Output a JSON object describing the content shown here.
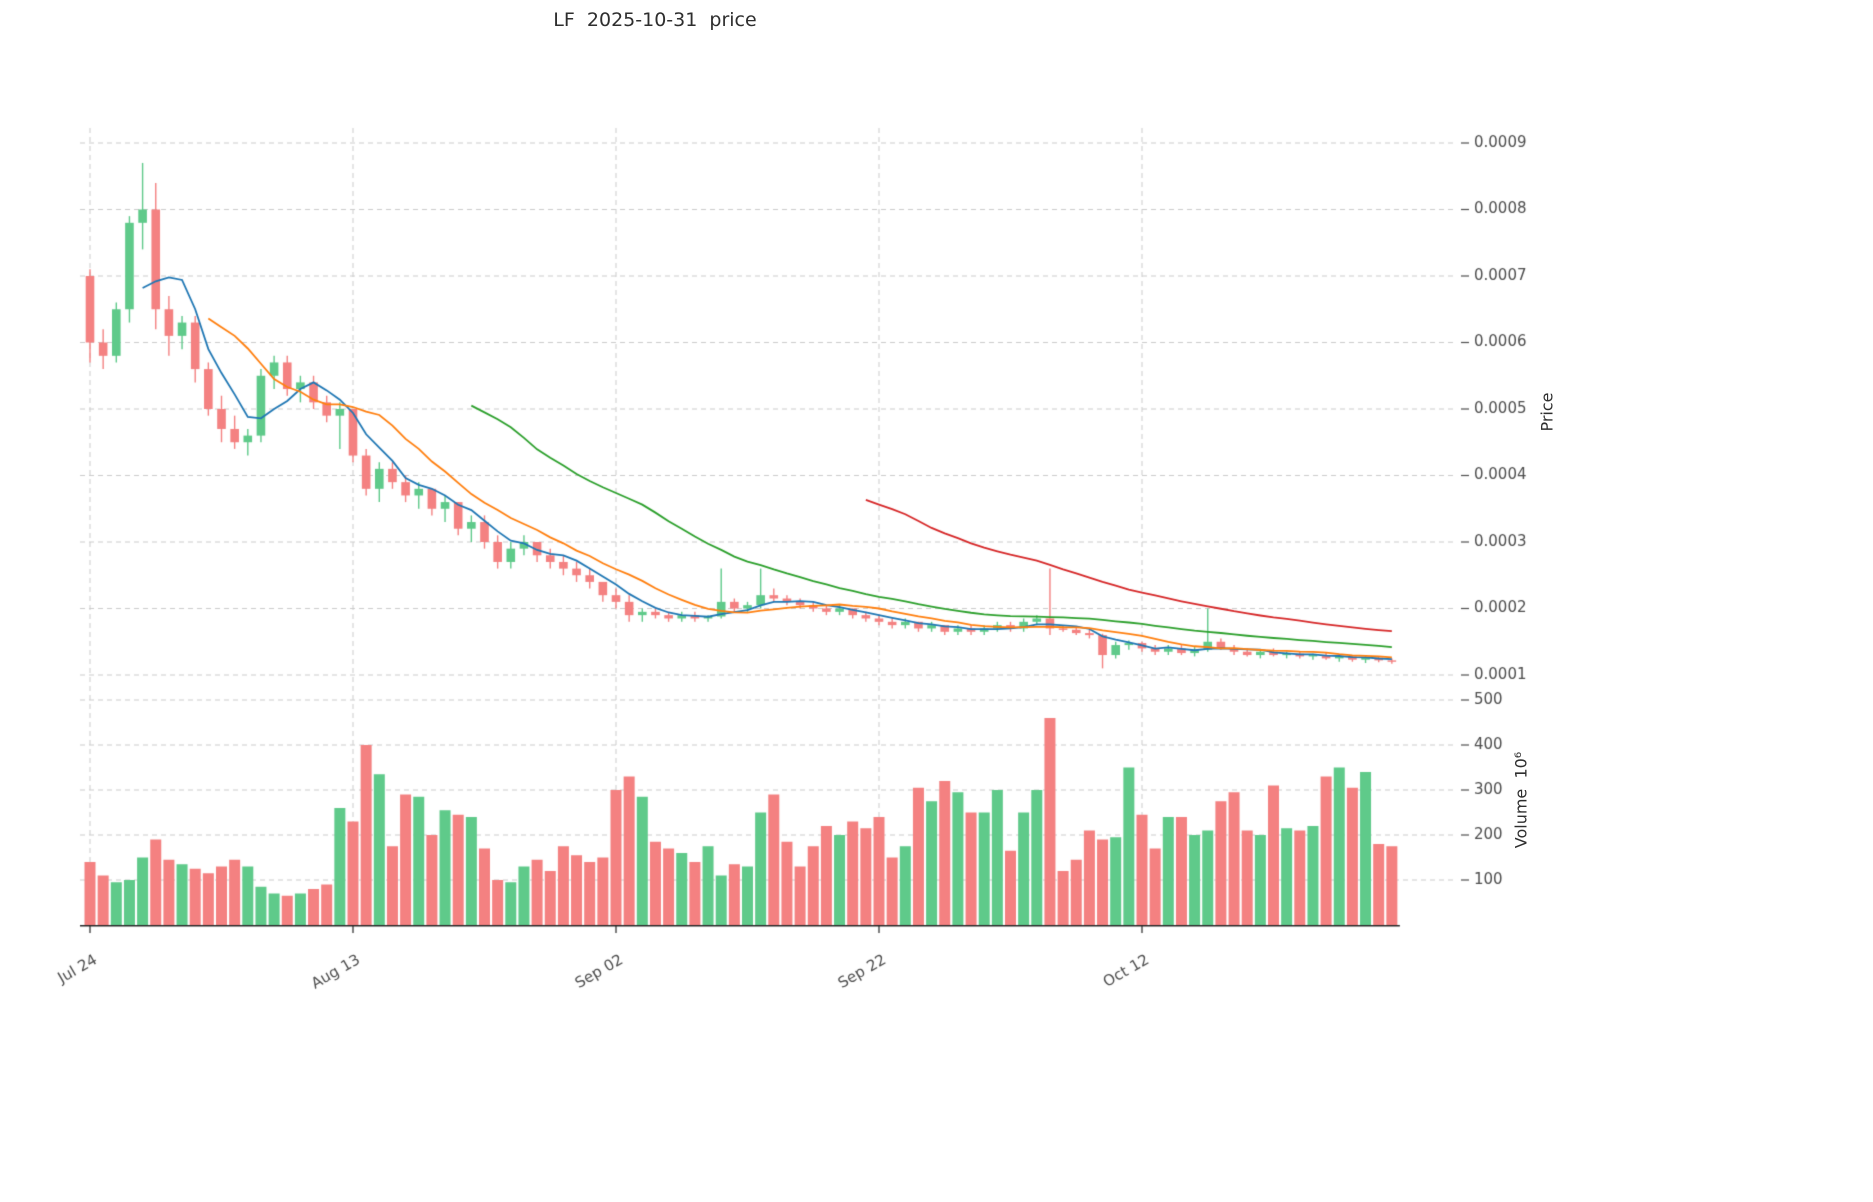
{
  "chart_data": {
    "type": "candlestick",
    "title": "LF  2025-10-31  price",
    "ylabel_price": "Price",
    "ylabel_volume": "Volume  10⁶",
    "grid": true,
    "price_ticks": [
      0.0001,
      0.0002,
      0.0003,
      0.0004,
      0.0005,
      0.0006,
      0.0007,
      0.0008,
      0.0009
    ],
    "volume_ticks": [
      100,
      200,
      300,
      400,
      500
    ],
    "x_tick_labels": [
      {
        "index": 0,
        "label": "Jul 24"
      },
      {
        "index": 20,
        "label": "Aug 13"
      },
      {
        "index": 40,
        "label": "Sep 02"
      },
      {
        "index": 60,
        "label": "Sep 22"
      },
      {
        "index": 80,
        "label": "Oct 12"
      }
    ],
    "ylim": [
      8e-05,
      0.00095
    ],
    "volume_ylim": [
      0,
      500
    ],
    "volume_unit": 1000000,
    "moving_averages": [
      {
        "name": "MA5",
        "period": 5,
        "color": "#1f77b4"
      },
      {
        "name": "MA10",
        "period": 10,
        "color": "#ff7f0e"
      },
      {
        "name": "MA30",
        "period": 30,
        "color": "#2ca02c"
      },
      {
        "name": "MA60",
        "period": 60,
        "color": "#d62728"
      }
    ],
    "colors": {
      "up": "#5fca8a",
      "down": "#f48181",
      "grid": "#cccccc",
      "text": "#4d4d4d",
      "axis": "#262626",
      "background": "#ffffff"
    },
    "dates": [
      "2025-07-24",
      "2025-07-25",
      "2025-07-26",
      "2025-07-27",
      "2025-07-28",
      "2025-07-29",
      "2025-07-30",
      "2025-07-31",
      "2025-08-01",
      "2025-08-02",
      "2025-08-03",
      "2025-08-04",
      "2025-08-05",
      "2025-08-06",
      "2025-08-07",
      "2025-08-08",
      "2025-08-09",
      "2025-08-10",
      "2025-08-11",
      "2025-08-12",
      "2025-08-13",
      "2025-08-14",
      "2025-08-15",
      "2025-08-16",
      "2025-08-17",
      "2025-08-18",
      "2025-08-19",
      "2025-08-20",
      "2025-08-21",
      "2025-08-22",
      "2025-08-23",
      "2025-08-24",
      "2025-08-25",
      "2025-08-26",
      "2025-08-27",
      "2025-08-28",
      "2025-08-29",
      "2025-08-30",
      "2025-08-31",
      "2025-09-01",
      "2025-09-02",
      "2025-09-03",
      "2025-09-04",
      "2025-09-05",
      "2025-09-06",
      "2025-09-07",
      "2025-09-08",
      "2025-09-09",
      "2025-09-10",
      "2025-09-11",
      "2025-09-12",
      "2025-09-13",
      "2025-09-14",
      "2025-09-15",
      "2025-09-16",
      "2025-09-17",
      "2025-09-18",
      "2025-09-19",
      "2025-09-20",
      "2025-09-21",
      "2025-09-22",
      "2025-09-23",
      "2025-09-24",
      "2025-09-25",
      "2025-09-26",
      "2025-09-27",
      "2025-09-28",
      "2025-09-29",
      "2025-09-30",
      "2025-10-01",
      "2025-10-02",
      "2025-10-03",
      "2025-10-04",
      "2025-10-05",
      "2025-10-06",
      "2025-10-07",
      "2025-10-08",
      "2025-10-09",
      "2025-10-10",
      "2025-10-11",
      "2025-10-12",
      "2025-10-13",
      "2025-10-14",
      "2025-10-15",
      "2025-10-16",
      "2025-10-17",
      "2025-10-18",
      "2025-10-19",
      "2025-10-20",
      "2025-10-21",
      "2025-10-22",
      "2025-10-23",
      "2025-10-24",
      "2025-10-25",
      "2025-10-26",
      "2025-10-27",
      "2025-10-28",
      "2025-10-29",
      "2025-10-30",
      "2025-10-31"
    ],
    "open": [
      0.0007,
      0.0006,
      0.00058,
      0.00065,
      0.00078,
      0.0008,
      0.00065,
      0.00061,
      0.00063,
      0.00056,
      0.0005,
      0.00047,
      0.00045,
      0.00046,
      0.00055,
      0.00057,
      0.00053,
      0.00054,
      0.00051,
      0.00049,
      0.0005,
      0.00043,
      0.00038,
      0.00041,
      0.00039,
      0.00037,
      0.00038,
      0.00035,
      0.00036,
      0.00032,
      0.00033,
      0.0003,
      0.00027,
      0.00029,
      0.0003,
      0.00028,
      0.00027,
      0.00026,
      0.00025,
      0.00024,
      0.00022,
      0.00021,
      0.00019,
      0.000195,
      0.00019,
      0.000185,
      0.00019,
      0.000185,
      0.000188,
      0.00021,
      0.0002,
      0.000205,
      0.00022,
      0.000215,
      0.00021,
      0.000205,
      0.0002,
      0.000195,
      0.0002,
      0.00019,
      0.000185,
      0.00018,
      0.000175,
      0.00018,
      0.00017,
      0.000175,
      0.000165,
      0.00017,
      0.000165,
      0.00017,
      0.000175,
      0.00017,
      0.00018,
      0.000185,
      0.00017,
      0.000168,
      0.000163,
      0.00016,
      0.00013,
      0.000145,
      0.000148,
      0.00014,
      0.000135,
      0.00014,
      0.000133,
      0.000138,
      0.00015,
      0.00014,
      0.000135,
      0.00013,
      0.000135,
      0.00013,
      0.000132,
      0.000128,
      0.00013,
      0.000125,
      0.000128,
      0.000123,
      0.000126,
      0.000122
    ],
    "high": [
      0.00071,
      0.00062,
      0.00066,
      0.00079,
      0.00087,
      0.00084,
      0.00067,
      0.00064,
      0.00064,
      0.00057,
      0.00052,
      0.00049,
      0.00047,
      0.00056,
      0.00058,
      0.00058,
      0.00055,
      0.00055,
      0.00052,
      0.00051,
      0.0005,
      0.00044,
      0.00042,
      0.00042,
      0.0004,
      0.00039,
      0.00038,
      0.00037,
      0.00036,
      0.00034,
      0.00034,
      0.00031,
      0.0003,
      0.00031,
      0.0003,
      0.00029,
      0.00028,
      0.00027,
      0.00026,
      0.00024,
      0.00023,
      0.00022,
      0.0002,
      0.0002,
      0.000195,
      0.000195,
      0.000195,
      0.00019,
      0.00026,
      0.000215,
      0.00021,
      0.00026,
      0.00023,
      0.00022,
      0.000215,
      0.00021,
      0.000205,
      0.000205,
      0.0002,
      0.000195,
      0.00019,
      0.000185,
      0.000185,
      0.00018,
      0.00018,
      0.000175,
      0.000175,
      0.000175,
      0.000175,
      0.00018,
      0.00018,
      0.000185,
      0.00019,
      0.00026,
      0.000175,
      0.000172,
      0.000168,
      0.000162,
      0.00015,
      0.000152,
      0.00015,
      0.000145,
      0.000145,
      0.000145,
      0.000142,
      0.0002,
      0.000155,
      0.000145,
      0.00014,
      0.000138,
      0.00014,
      0.000135,
      0.000135,
      0.000132,
      0.000133,
      0.00013,
      0.00013,
      0.000128,
      0.000128,
      0.000125
    ],
    "low": [
      0.00057,
      0.00056,
      0.00057,
      0.00063,
      0.00074,
      0.00062,
      0.00058,
      0.00059,
      0.00054,
      0.00049,
      0.00045,
      0.00044,
      0.00043,
      0.00045,
      0.00053,
      0.00052,
      0.00051,
      0.0005,
      0.00048,
      0.00044,
      0.00042,
      0.00037,
      0.00036,
      0.00038,
      0.00036,
      0.00035,
      0.00034,
      0.00033,
      0.00031,
      0.0003,
      0.00029,
      0.00026,
      0.00026,
      0.00028,
      0.00027,
      0.00026,
      0.00025,
      0.00024,
      0.00023,
      0.00021,
      0.0002,
      0.00018,
      0.00018,
      0.000185,
      0.00018,
      0.00018,
      0.00018,
      0.00018,
      0.000185,
      0.000195,
      0.000195,
      0.0002,
      0.00021,
      0.000205,
      0.0002,
      0.000195,
      0.00019,
      0.00019,
      0.000185,
      0.00018,
      0.000175,
      0.00017,
      0.00017,
      0.000165,
      0.000165,
      0.00016,
      0.00016,
      0.00016,
      0.00016,
      0.000165,
      0.000165,
      0.000165,
      0.000175,
      0.00016,
      0.000165,
      0.00016,
      0.000155,
      0.00011,
      0.000125,
      0.000138,
      0.000135,
      0.00013,
      0.00013,
      0.00013,
      0.000128,
      0.000135,
      0.000138,
      0.00013,
      0.000128,
      0.000125,
      0.000128,
      0.000125,
      0.000125,
      0.000123,
      0.000123,
      0.00012,
      0.00012,
      0.000118,
      0.000119,
      0.000117
    ],
    "close": [
      0.0006,
      0.00058,
      0.00065,
      0.00078,
      0.0008,
      0.00065,
      0.00061,
      0.00063,
      0.00056,
      0.0005,
      0.00047,
      0.00045,
      0.00046,
      0.00055,
      0.00057,
      0.00053,
      0.00054,
      0.00051,
      0.00049,
      0.0005,
      0.00043,
      0.00038,
      0.00041,
      0.00039,
      0.00037,
      0.00038,
      0.00035,
      0.00036,
      0.00032,
      0.00033,
      0.0003,
      0.00027,
      0.00029,
      0.0003,
      0.00028,
      0.00027,
      0.00026,
      0.00025,
      0.00024,
      0.00022,
      0.00021,
      0.00019,
      0.000195,
      0.00019,
      0.000185,
      0.00019,
      0.000185,
      0.000188,
      0.00021,
      0.0002,
      0.000205,
      0.00022,
      0.000215,
      0.00021,
      0.000205,
      0.0002,
      0.000195,
      0.0002,
      0.00019,
      0.000185,
      0.00018,
      0.000175,
      0.00018,
      0.00017,
      0.000175,
      0.000165,
      0.00017,
      0.000165,
      0.00017,
      0.000175,
      0.00017,
      0.00018,
      0.000185,
      0.00017,
      0.000168,
      0.000163,
      0.00016,
      0.00013,
      0.000145,
      0.000148,
      0.00014,
      0.000135,
      0.00014,
      0.000133,
      0.000138,
      0.00015,
      0.00014,
      0.000135,
      0.00013,
      0.000135,
      0.00013,
      0.000132,
      0.000128,
      0.00013,
      0.000125,
      0.000128,
      0.000123,
      0.000126,
      0.000122,
      0.00012
    ],
    "volume": [
      140,
      110,
      95,
      100,
      150,
      190,
      145,
      135,
      125,
      115,
      130,
      145,
      130,
      85,
      70,
      65,
      70,
      80,
      90,
      260,
      230,
      400,
      335,
      175,
      290,
      285,
      200,
      255,
      245,
      240,
      170,
      100,
      95,
      130,
      145,
      120,
      175,
      155,
      140,
      150,
      300,
      330,
      285,
      185,
      170,
      160,
      140,
      175,
      110,
      135,
      130,
      250,
      290,
      185,
      130,
      175,
      220,
      200,
      230,
      215,
      240,
      150,
      175,
      305,
      275,
      320,
      295,
      250,
      250,
      300,
      165,
      250,
      300,
      460,
      120,
      145,
      210,
      190,
      195,
      350,
      245,
      170,
      240,
      240,
      200,
      210,
      275,
      295,
      210,
      200,
      310,
      215,
      210,
      220,
      330,
      350,
      305,
      340,
      180,
      175
    ]
  }
}
